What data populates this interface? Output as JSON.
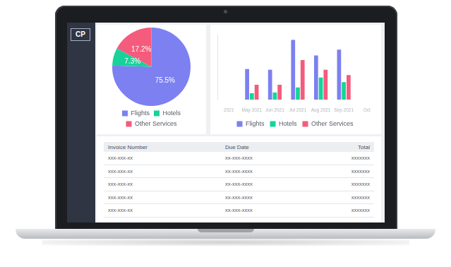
{
  "logo": "CP",
  "chart_data": [
    {
      "type": "pie",
      "categories": [
        "Flights",
        "Hotels",
        "Other Services"
      ],
      "values": [
        75.5,
        7.3,
        17.2
      ],
      "value_labels": [
        "75.5%",
        "7.3%",
        "17.2%"
      ],
      "colors": [
        "#7c80f0",
        "#17d39a",
        "#f45b7c"
      ],
      "data_labels": true,
      "legend": "bottom"
    },
    {
      "type": "bar",
      "categories": [
        "2021",
        "May 2021",
        "Jun 2021",
        "Jul 2021",
        "Aug 2021",
        "Sep 2021",
        "Oct"
      ],
      "series": [
        {
          "name": "Flights",
          "color": "#7c80f0",
          "values": [
            null,
            47,
            46,
            92,
            68,
            77,
            null
          ]
        },
        {
          "name": "Hotels",
          "color": "#17d39a",
          "values": [
            null,
            10,
            11,
            19,
            34,
            27,
            null
          ]
        },
        {
          "name": "Other Services",
          "color": "#f45b7c",
          "values": [
            null,
            23,
            23,
            61,
            46,
            38,
            null
          ]
        }
      ],
      "ylim": [
        0,
        100
      ],
      "yticks": [],
      "grid": false,
      "legend": "bottom",
      "tick_labels": "x"
    }
  ],
  "table": {
    "header": [
      "Invoice Number",
      "Due Date",
      "Total"
    ],
    "rows": [
      [
        "xxx-xxx-xx",
        "xx-xxx-xxxx",
        "xxxxxxx"
      ],
      [
        "xxx-xxx-xx",
        "xx-xxx-xxxx",
        "xxxxxxx"
      ],
      [
        "xxx-xxx-xx",
        "xx-xxx-xxxx",
        "xxxxxxx"
      ],
      [
        "xxx-xxx-xx",
        "xx-xxx-xxxx",
        "xxxxxxx"
      ],
      [
        "xxx-xxx-xx",
        "xx-xxx-xxxx",
        "xxxxxxx"
      ]
    ]
  }
}
